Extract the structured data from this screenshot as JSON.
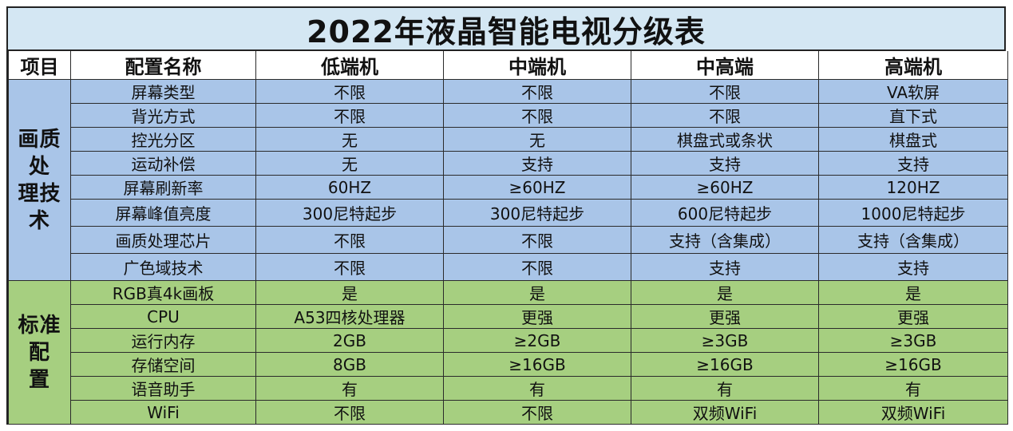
{
  "title": "2022年液晶智能电视分级表",
  "headers": [
    "项目",
    "配置名称",
    "低端机",
    "中端机",
    "中高端",
    "高端机"
  ],
  "groups": [
    {
      "name_line1": "画质处",
      "name_line2": "理技术",
      "color": "#a9c5e8",
      "rows": [
        [
          "屏幕类型",
          "不限",
          "不限",
          "不限",
          "VA软屏"
        ],
        [
          "背光方式",
          "不限",
          "不限",
          "不限",
          "直下式"
        ],
        [
          "控光分区",
          "无",
          "无",
          "棋盘式或条状",
          "棋盘式"
        ],
        [
          "运动补偿",
          "无",
          "支持",
          "支持",
          "支持"
        ],
        [
          "屏幕刷新率",
          "60HZ",
          "≥60HZ",
          "≥60HZ",
          "120HZ"
        ],
        [
          "屏幕峰值亮度",
          "300尼特起步",
          "300尼特起步",
          "600尼特起步",
          "1000尼特起步"
        ],
        [
          "画质处理芯片",
          "不限",
          "不限",
          "支持（含集成）",
          "支持（含集成）"
        ],
        [
          "广色域技术",
          "不限",
          "不限",
          "支持",
          "支持"
        ]
      ]
    },
    {
      "name_line1": "标准配",
      "name_line2": "置",
      "color": "#a6cf80",
      "rows": [
        [
          "RGB真4k画板",
          "是",
          "是",
          "是",
          "是"
        ],
        [
          "CPU",
          "A53四核处理器",
          "更强",
          "更强",
          "更强"
        ],
        [
          "运行内存",
          "2GB",
          "≥2GB",
          "≥3GB",
          "≥3GB"
        ],
        [
          "存储空间",
          "8GB",
          "≥16GB",
          "≥16GB",
          "≥16GB"
        ],
        [
          "语音助手",
          "有",
          "有",
          "有",
          "有"
        ],
        [
          "WiFi",
          "不限",
          "不限",
          "双频WiFi",
          "双频WiFi"
        ]
      ]
    }
  ]
}
